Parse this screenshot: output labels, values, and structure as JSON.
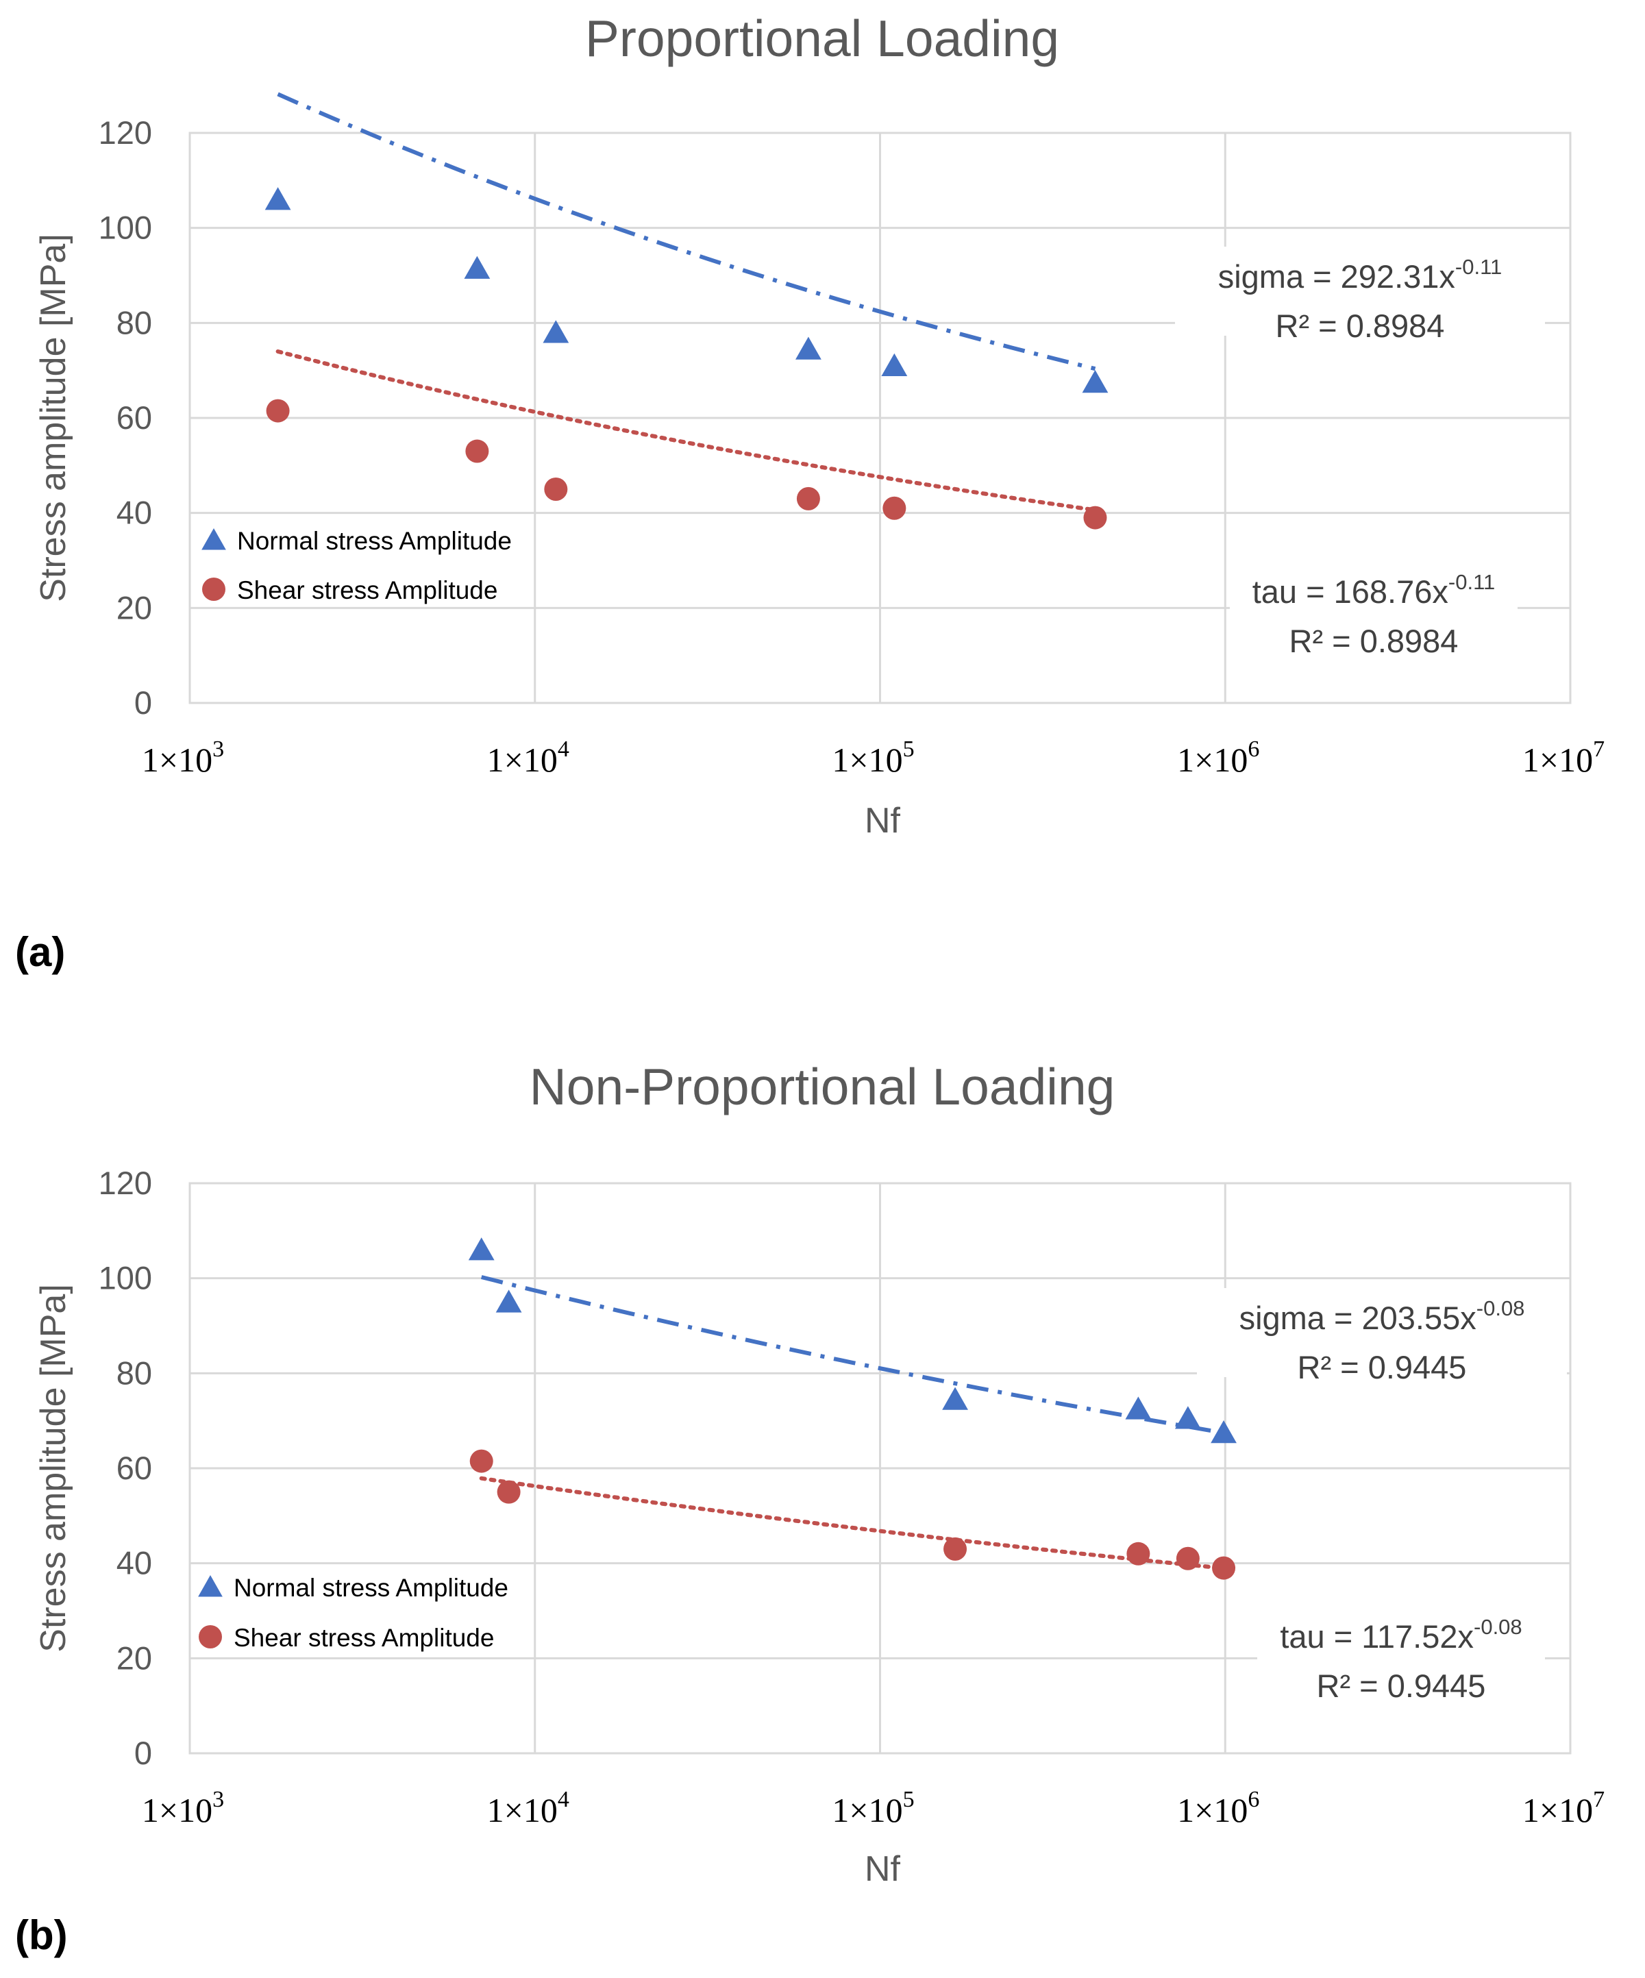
{
  "chart_data": [
    {
      "type": "scatter",
      "panel_label": "(a)",
      "title": "Proportional Loading",
      "xlabel": "Nf",
      "ylabel": "Stress amplitude [MPa]",
      "xscale": "log",
      "xlim": [
        1000,
        10000000
      ],
      "ylim": [
        0,
        120
      ],
      "yticks": [
        0,
        20,
        40,
        60,
        80,
        100,
        120
      ],
      "xticks": [
        {
          "value": 1000,
          "base": "1×10",
          "exp": "3"
        },
        {
          "value": 10000,
          "base": "1×10",
          "exp": "4"
        },
        {
          "value": 100000,
          "base": "1×10",
          "exp": "5"
        },
        {
          "value": 1000000,
          "base": "1×10",
          "exp": "6"
        },
        {
          "value": 10000000,
          "base": "1×10",
          "exp": "7"
        }
      ],
      "grid": true,
      "legend_position": "left",
      "series": [
        {
          "name": "Normal stress Amplitude",
          "marker": "triangle",
          "color": "#4472C4",
          "x": [
            1800,
            6800,
            11500,
            62000,
            110000,
            420000
          ],
          "y": [
            106,
            91.5,
            78,
            74.5,
            71,
            67.5
          ],
          "trend": {
            "type": "power",
            "a": 292.31,
            "b": -0.11,
            "style": "dash-dot",
            "x_range": [
              1800,
              420000
            ]
          },
          "equation": {
            "lhs": "sigma = 292.31x",
            "exp": "-0.11",
            "r2": "R² = 0.8984"
          }
        },
        {
          "name": "Shear stress Amplitude",
          "marker": "circle",
          "color": "#C0504D",
          "x": [
            1800,
            6800,
            11500,
            62000,
            110000,
            420000
          ],
          "y": [
            61.5,
            53,
            45,
            43,
            41,
            39
          ],
          "trend": {
            "type": "power",
            "a": 168.76,
            "b": -0.11,
            "style": "dotted",
            "x_range": [
              1800,
              420000
            ]
          },
          "equation": {
            "lhs": "tau = 168.76x",
            "exp": "-0.11",
            "r2": "R² = 0.8984"
          }
        }
      ]
    },
    {
      "type": "scatter",
      "panel_label": "(b)",
      "title": "Non-Proportional Loading",
      "xlabel": "Nf",
      "ylabel": "Stress amplitude [MPa]",
      "xscale": "log",
      "xlim": [
        1000,
        10000000
      ],
      "ylim": [
        0,
        120
      ],
      "yticks": [
        0,
        20,
        40,
        60,
        80,
        100,
        120
      ],
      "xticks": [
        {
          "value": 1000,
          "base": "1×10",
          "exp": "3"
        },
        {
          "value": 10000,
          "base": "1×10",
          "exp": "4"
        },
        {
          "value": 100000,
          "base": "1×10",
          "exp": "5"
        },
        {
          "value": 1000000,
          "base": "1×10",
          "exp": "6"
        },
        {
          "value": 10000000,
          "base": "1×10",
          "exp": "7"
        }
      ],
      "grid": true,
      "legend_position": "left",
      "series": [
        {
          "name": "Normal stress Amplitude",
          "marker": "triangle",
          "color": "#4472C4",
          "x": [
            7000,
            8400,
            165000,
            560000,
            780000,
            990000
          ],
          "y": [
            106,
            95,
            74.5,
            72.5,
            70.5,
            67.5
          ],
          "trend": {
            "type": "power",
            "a": 203.55,
            "b": -0.08,
            "style": "dash-dot",
            "x_range": [
              7000,
              990000
            ]
          },
          "equation": {
            "lhs": "sigma = 203.55x",
            "exp": "-0.08",
            "r2": "R² = 0.9445"
          }
        },
        {
          "name": "Shear stress Amplitude",
          "marker": "circle",
          "color": "#C0504D",
          "x": [
            7000,
            8400,
            165000,
            560000,
            780000,
            990000
          ],
          "y": [
            61.5,
            55,
            43,
            42,
            41,
            39
          ],
          "trend": {
            "type": "power",
            "a": 117.52,
            "b": -0.08,
            "style": "dotted",
            "x_range": [
              7000,
              990000
            ]
          },
          "equation": {
            "lhs": "tau = 117.52x",
            "exp": "-0.08",
            "r2": "R² = 0.9445"
          }
        }
      ]
    }
  ]
}
